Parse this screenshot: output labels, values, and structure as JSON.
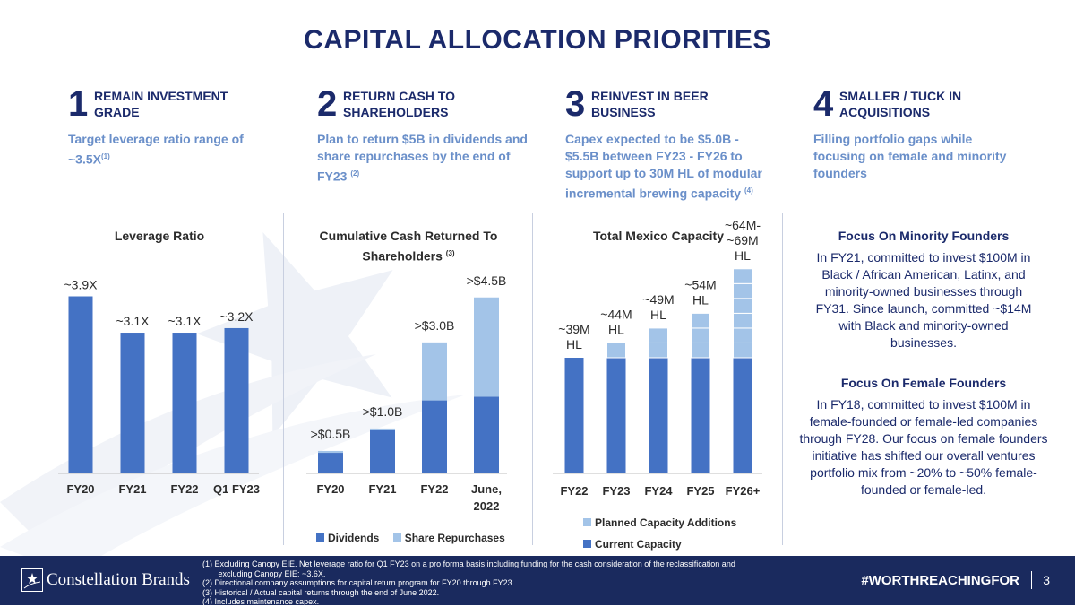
{
  "title": "CAPITAL ALLOCATION PRIORITIES",
  "colors": {
    "navy": "#1b2a6b",
    "dark_blue": "#4472c4",
    "light_blue": "#a3c4e8",
    "desc_blue": "#6a8fc9"
  },
  "pillars": [
    {
      "num": "1",
      "title_lines": [
        "REMAIN INVESTMENT",
        "GRADE"
      ],
      "desc": "Target leverage ratio range of ~3.5X",
      "sup": "(1)"
    },
    {
      "num": "2",
      "title_lines": [
        "RETURN CASH TO",
        "SHAREHOLDERS"
      ],
      "desc": "Plan to return $5B in dividends and share repurchases by the end of FY23",
      "sup": "(2)"
    },
    {
      "num": "3",
      "title_lines": [
        "REINVEST IN BEER",
        "BUSINESS"
      ],
      "desc": "Capex expected to be $5.0B - $5.5B between FY23 - FY26 to support up to 30M HL of modular incremental brewing capacity",
      "sup": "(4)"
    },
    {
      "num": "4",
      "title_lines": [
        "SMALLER / TUCK IN",
        "ACQUISITIONS"
      ],
      "desc": "Filling portfolio gaps while focusing on female and minority founders",
      "sup": ""
    }
  ],
  "chart_data": [
    {
      "type": "bar",
      "title": "Leverage Ratio",
      "categories": [
        "FY20",
        "FY21",
        "FY22",
        "Q1 FY23"
      ],
      "values": [
        3.9,
        3.1,
        3.1,
        3.2
      ],
      "data_labels": [
        "~3.9X",
        "~3.1X",
        "~3.1X",
        "~3.2X"
      ],
      "ylim": [
        0,
        4.7
      ]
    },
    {
      "type": "bar",
      "stacked": true,
      "title": "Cumulative Cash Returned To Shareholders",
      "title_sup": "(3)",
      "categories": [
        "FY20",
        "FY21",
        "FY22",
        "June, 2022"
      ],
      "series": [
        {
          "name": "Dividends",
          "values": [
            0.55,
            1.15,
            1.95,
            2.05
          ]
        },
        {
          "name": "Share Repurchases",
          "values": [
            0.05,
            0.05,
            1.55,
            2.65
          ]
        }
      ],
      "data_labels": [
        ">$0.5B",
        ">$1.0B",
        ">$3.0B",
        ">$4.5B"
      ],
      "ylim": [
        0,
        5.7
      ]
    },
    {
      "type": "bar",
      "stacked": true,
      "title": "Total Mexico Capacity",
      "categories": [
        "FY22",
        "FY23",
        "FY24",
        "FY25",
        "FY26+"
      ],
      "series": [
        {
          "name": "Current Capacity",
          "values": [
            39,
            39,
            39,
            39,
            39
          ]
        },
        {
          "name": "Planned Capacity Additions",
          "values": [
            0,
            5,
            10,
            15,
            30
          ]
        }
      ],
      "data_labels": [
        "~39M HL",
        "~44M HL",
        "~49M HL",
        "~54M HL",
        "~64M- ~69M HL"
      ],
      "ylim": [
        0,
        78
      ]
    }
  ],
  "focus": [
    {
      "heading": "Focus On Minority Founders",
      "body": "In FY21, committed to invest $100M in Black / African American, Latinx, and minority-owned businesses through FY31. Since launch, committed ~$14M with Black and minority-owned businesses."
    },
    {
      "heading": "Focus On Female Founders",
      "body": "In FY18, committed to invest $100M in female-founded or female-led companies through FY28. Our focus on female founders initiative has shifted our overall ventures portfolio mix from ~20% to ~50% female-founded or female-led."
    }
  ],
  "footer": {
    "brand": "Constellation Brands",
    "notes": [
      "(1)  Excluding Canopy EIE. Net leverage ratio for Q1 FY23 on a pro forma basis including funding for the cash consideration of the reclassification and",
      "       excluding Canopy EIE: ~3.6X.",
      "(2)  Directional company assumptions for capital return  program for FY20 through FY23.",
      "(3)  Historical / Actual capital returns through the end of June 2022.",
      "(4)  Includes maintenance capex."
    ],
    "hashtag": "#WORTHREACHINGFOR",
    "page": "3"
  }
}
